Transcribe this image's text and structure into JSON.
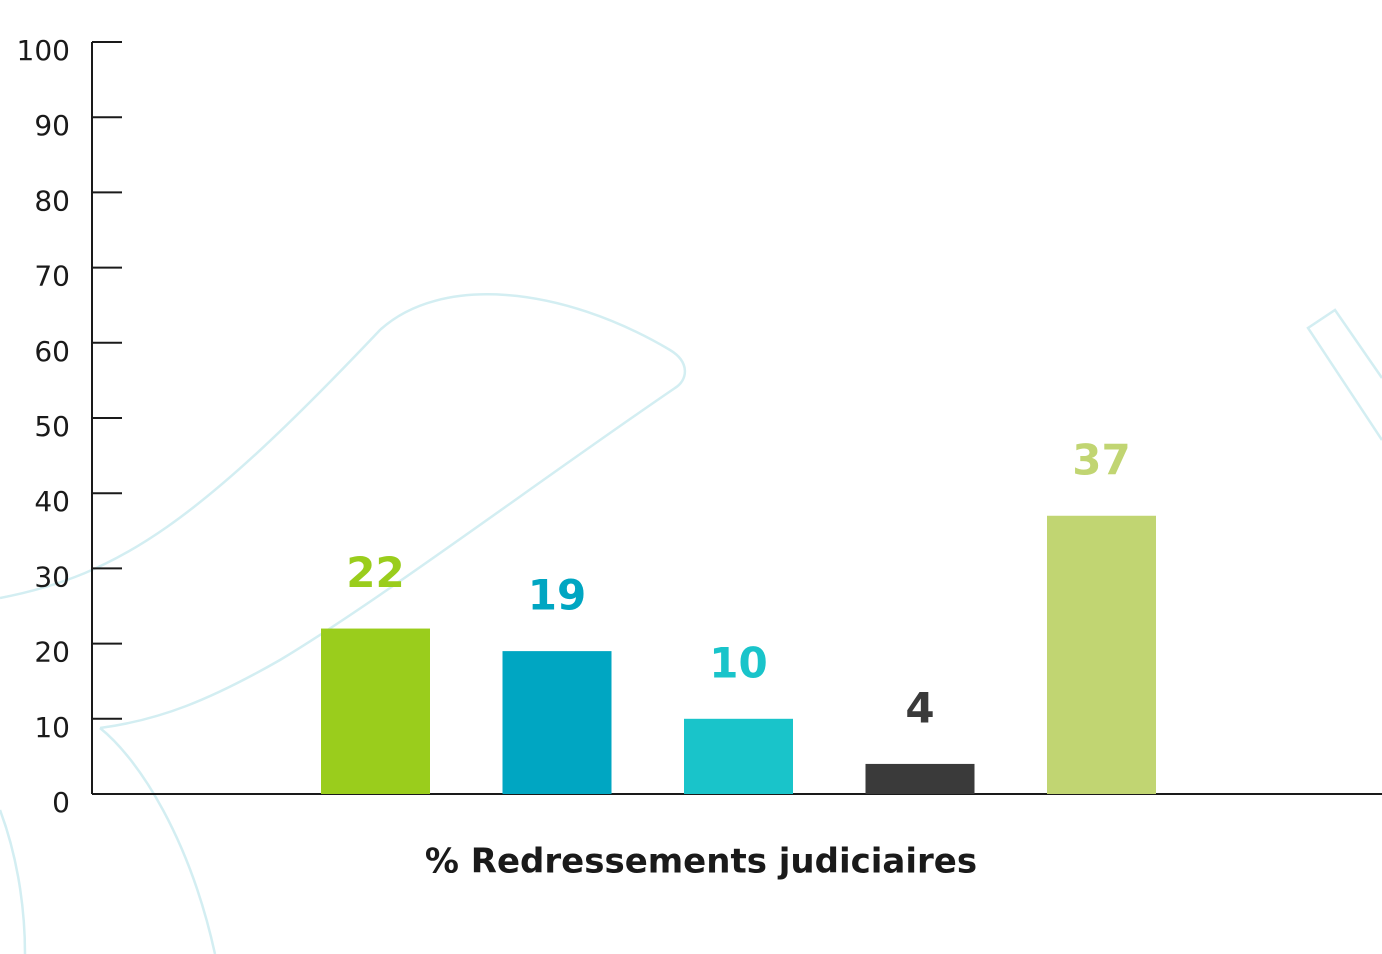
{
  "chart_data": {
    "type": "bar",
    "x_label": "% Redressements judiciaires",
    "categories": [
      null,
      null,
      null,
      null,
      null
    ],
    "values": [
      22,
      19,
      10,
      4,
      37
    ],
    "colors": [
      "#9acd1c",
      "#00a6c2",
      "#19c4ca",
      "#3a3a3a",
      "#c1d572"
    ],
    "ylim": [
      0,
      100
    ],
    "yticks": [
      0,
      10,
      20,
      30,
      40,
      50,
      60,
      70,
      80,
      90,
      100
    ]
  }
}
